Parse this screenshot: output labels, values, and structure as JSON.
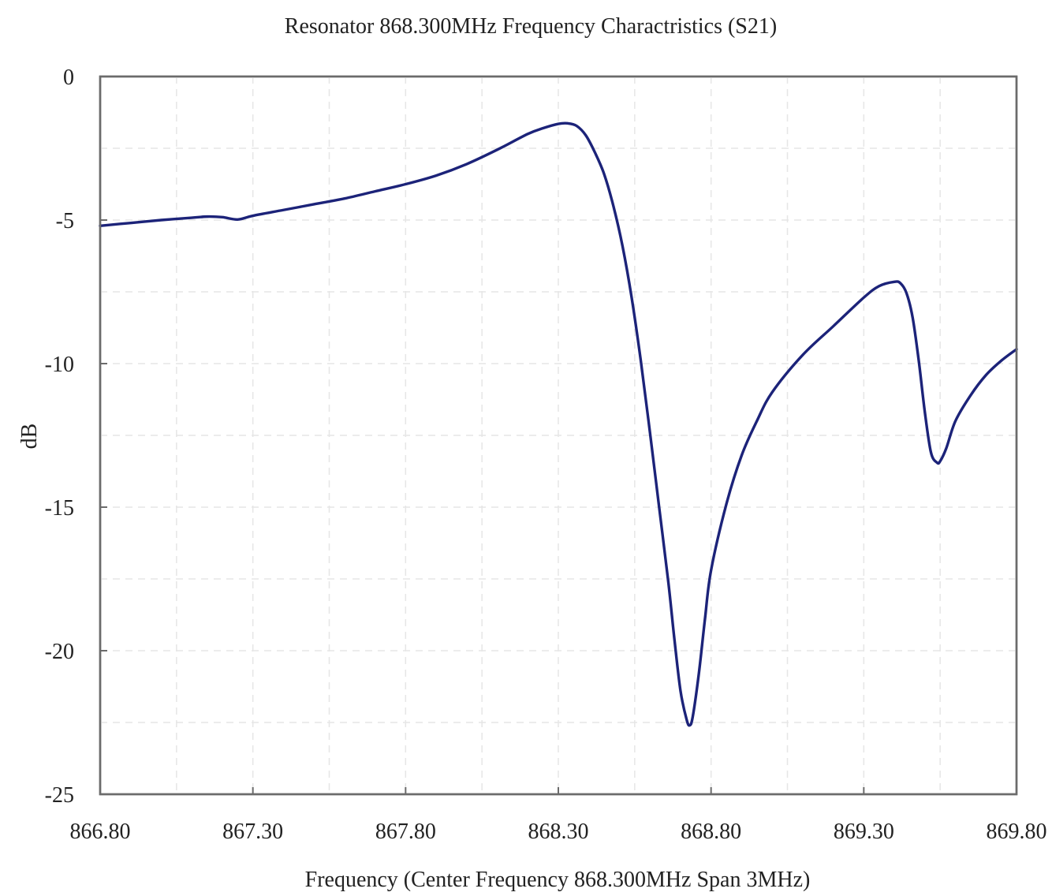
{
  "chart_data": {
    "type": "line",
    "title": "Resonator 868.300MHz Frequency Charactristics (S21)",
    "xlabel": "Frequency (Center Frequency 868.300MHz Span 3MHz)",
    "ylabel": "dB",
    "xlim": [
      866.8,
      869.8
    ],
    "ylim": [
      -25,
      0
    ],
    "x_ticks": [
      "866.80",
      "867.30",
      "867.80",
      "868.30",
      "868.80",
      "869.30",
      "869.80"
    ],
    "y_ticks": [
      "0",
      "-5",
      "-10",
      "-15",
      "-20",
      "-25"
    ],
    "grid": true,
    "legend": "none",
    "colors": {
      "series": "#1c2379",
      "frame": "#6b6b6b",
      "grid": "#e6e6e6"
    },
    "series": [
      {
        "x": [
          866.8,
          866.9,
          867.0,
          867.1,
          867.15,
          867.2,
          867.25,
          867.3,
          867.4,
          867.5,
          867.6,
          867.7,
          867.8,
          867.9,
          868.0,
          868.1,
          868.2,
          868.25,
          868.3,
          868.33,
          868.36,
          868.39,
          868.42,
          868.45,
          868.48,
          868.51,
          868.54,
          868.57,
          868.6,
          868.63,
          868.66,
          868.68,
          868.7,
          868.72,
          868.73,
          868.74,
          868.76,
          868.78,
          868.8,
          868.85,
          868.9,
          868.95,
          869.0,
          869.1,
          869.2,
          869.3,
          869.35,
          869.4,
          869.42,
          869.44,
          869.46,
          869.48,
          869.5,
          869.52,
          869.54,
          869.55,
          869.57,
          869.6,
          869.65,
          869.7,
          869.75,
          869.8
        ],
        "y": [
          -5.2,
          -5.1,
          -5.0,
          -4.92,
          -4.88,
          -4.9,
          -4.98,
          -4.85,
          -4.65,
          -4.45,
          -4.25,
          -4.0,
          -3.75,
          -3.45,
          -3.05,
          -2.55,
          -2.0,
          -1.8,
          -1.65,
          -1.63,
          -1.72,
          -2.05,
          -2.65,
          -3.4,
          -4.5,
          -5.9,
          -7.7,
          -9.9,
          -12.4,
          -15.0,
          -17.6,
          -19.6,
          -21.4,
          -22.4,
          -22.6,
          -22.3,
          -20.8,
          -18.9,
          -17.2,
          -14.9,
          -13.2,
          -12.0,
          -11.0,
          -9.7,
          -8.7,
          -7.7,
          -7.3,
          -7.15,
          -7.2,
          -7.55,
          -8.4,
          -9.9,
          -11.7,
          -13.1,
          -13.45,
          -13.4,
          -12.95,
          -12.0,
          -11.1,
          -10.4,
          -9.9,
          -9.5
        ]
      }
    ]
  }
}
